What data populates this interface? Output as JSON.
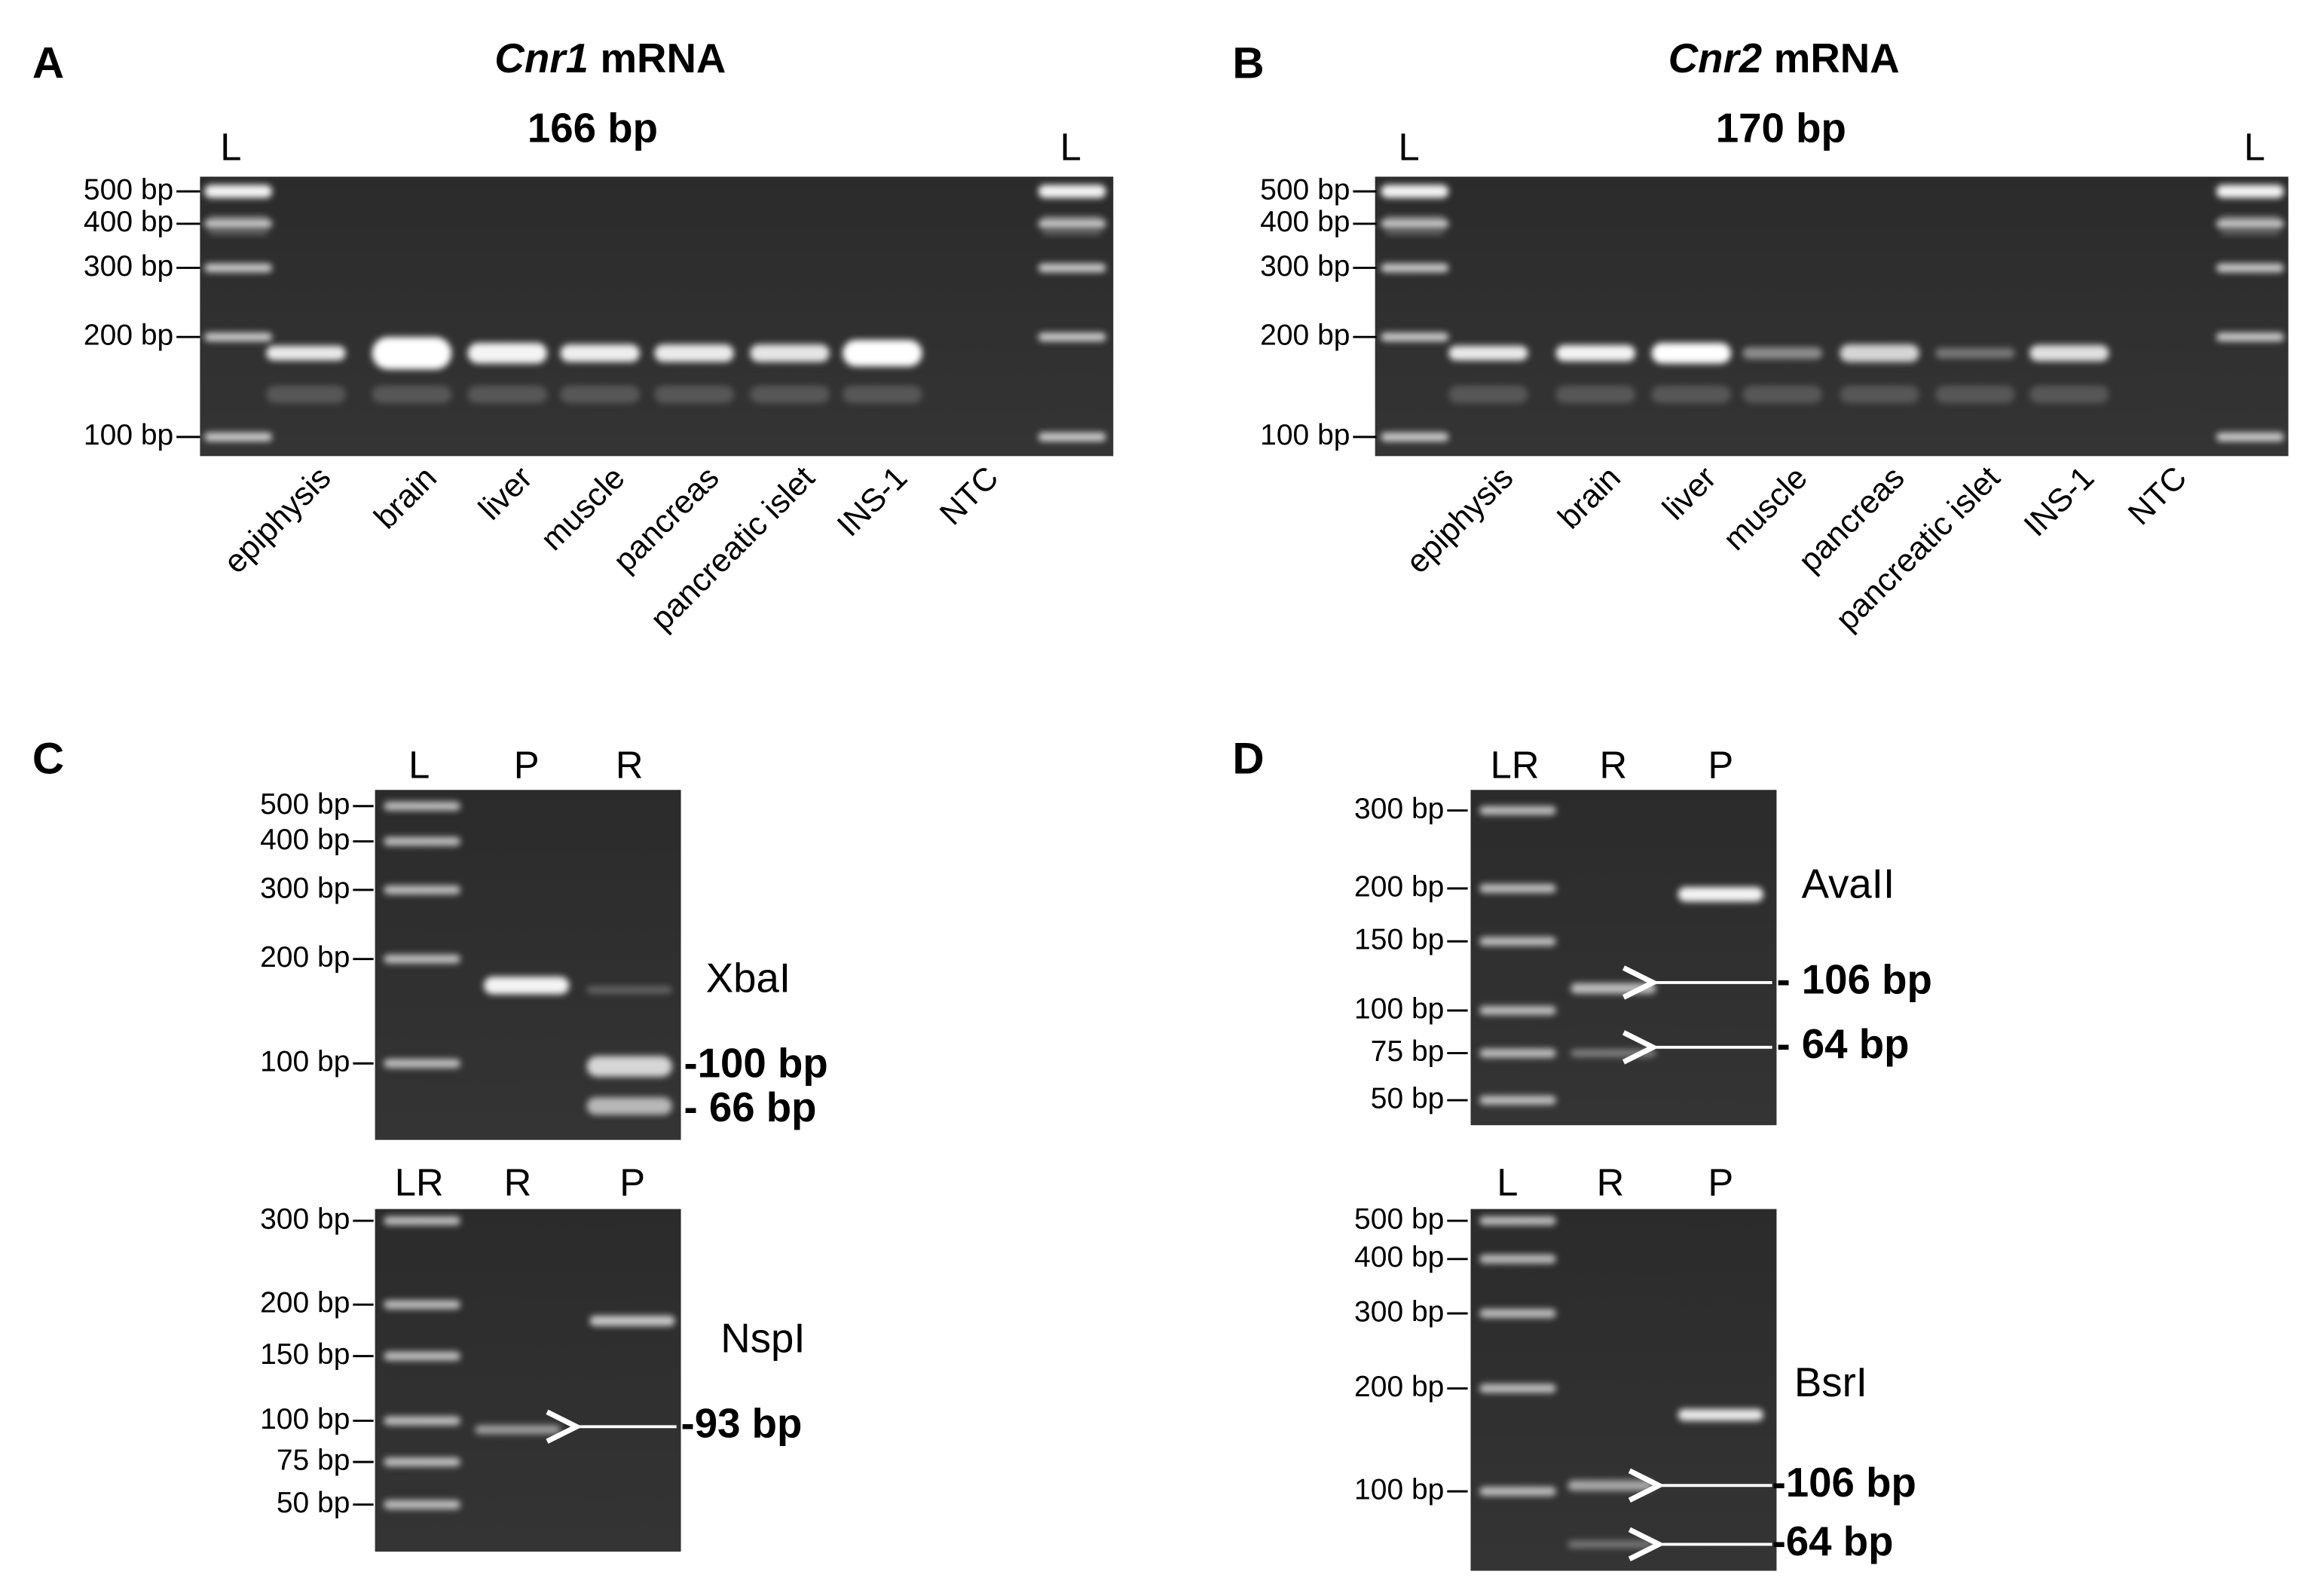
{
  "panels": [
    {
      "letter": "A",
      "title_gene": "Cnr1",
      "title_suffix": "mRNA",
      "product": "166 bp",
      "lane_labels": [
        "L",
        "L"
      ],
      "ladder": [
        "500 bp",
        "400 bp",
        "300 bp",
        "200 bp",
        "100 bp"
      ],
      "samples": [
        "epiphysis",
        "brain",
        "liver",
        "muscle",
        "pancreas",
        "pancreatic islet",
        "INS-1",
        "NTC"
      ]
    },
    {
      "letter": "B",
      "title_gene": "Cnr2",
      "title_suffix": "mRNA",
      "product": "170 bp",
      "lane_labels": [
        "L",
        "L"
      ],
      "ladder": [
        "500 bp",
        "400 bp",
        "300 bp",
        "200 bp",
        "100 bp"
      ],
      "samples": [
        "epiphysis",
        "brain",
        "liver",
        "muscle",
        "pancreas",
        "pancreatic islet",
        "INS-1",
        "NTC"
      ]
    },
    {
      "letter": "C",
      "gels": [
        {
          "lanes": [
            "L",
            "P",
            "R"
          ],
          "ladder": [
            "500 bp",
            "400 bp",
            "300 bp",
            "200 bp",
            "100 bp"
          ],
          "enzyme": "XbaI",
          "fragments": [
            "-100 bp",
            "- 66 bp"
          ]
        },
        {
          "lanes": [
            "LR",
            "R",
            "P"
          ],
          "ladder": [
            "300 bp",
            "200 bp",
            "150 bp",
            "100 bp",
            "75 bp",
            "50 bp"
          ],
          "enzyme": "NspI",
          "fragments": [
            "-93 bp"
          ]
        }
      ]
    },
    {
      "letter": "D",
      "gels": [
        {
          "lanes": [
            "LR",
            "R",
            "P"
          ],
          "ladder": [
            "300 bp",
            "200 bp",
            "150 bp",
            "100 bp",
            "75 bp",
            "50 bp"
          ],
          "enzyme": "AvaII",
          "fragments": [
            "- 106 bp",
            "- 64 bp"
          ]
        },
        {
          "lanes": [
            "L",
            "R",
            "P"
          ],
          "ladder": [
            "500 bp",
            "400 bp",
            "300 bp",
            "200 bp",
            "100 bp"
          ],
          "enzyme": "BsrI",
          "fragments": [
            "-106 bp",
            "-64 bp"
          ]
        }
      ]
    }
  ]
}
